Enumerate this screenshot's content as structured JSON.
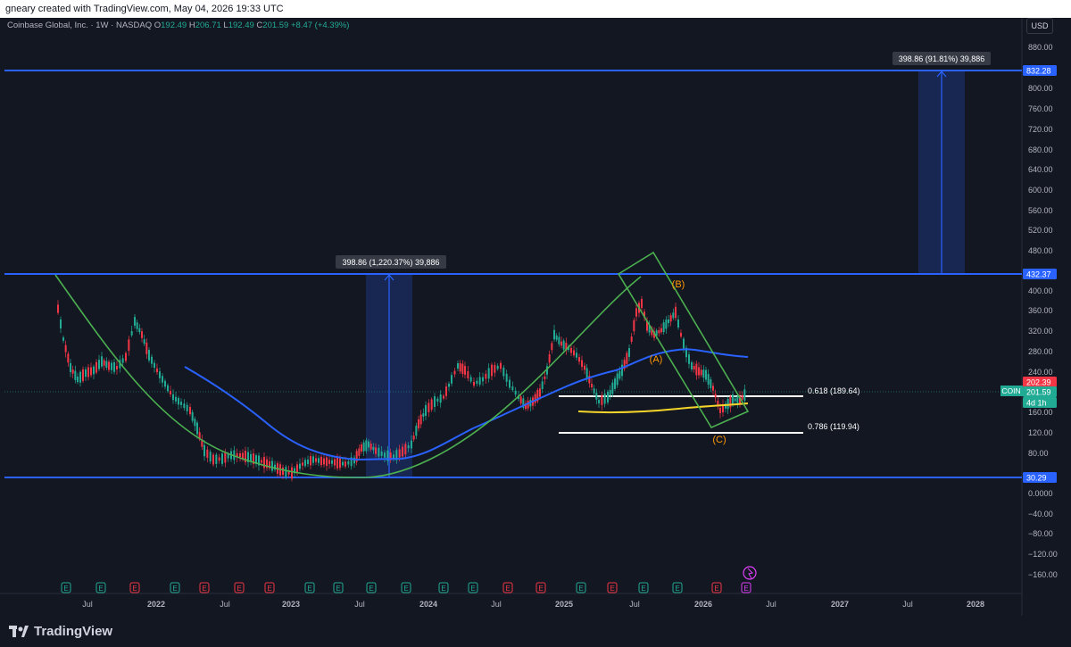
{
  "header": {
    "attribution": "gneary created with TradingView.com, May 04, 2026 19:33 UTC"
  },
  "symbol": {
    "name": "Coinbase Global, Inc. · 1W · NASDAQ",
    "o_label": "O",
    "o": "192.49",
    "h_label": "H",
    "h": "206.71",
    "l_label": "L",
    "l": "192.49",
    "c_label": "C",
    "c": "201.59",
    "change": "+8.47 (+4.39%)"
  },
  "currency_button": "USD",
  "price_axis": {
    "ticks": [
      "880.00",
      "800.00",
      "760.00",
      "720.00",
      "680.00",
      "640.00",
      "600.00",
      "560.00",
      "520.00",
      "480.00",
      "400.00",
      "360.00",
      "320.00",
      "280.00",
      "240.00",
      "160.00",
      "120.00",
      "80.00",
      "0.0000",
      "−40.00",
      "−80.00",
      "−120.00",
      "−160.00"
    ],
    "tags": [
      {
        "text": "832.28",
        "color": "#2962ff"
      },
      {
        "text": "432.37",
        "color": "#2962ff"
      },
      {
        "text": "202.39",
        "color": "#f23645"
      },
      {
        "text": "201.59",
        "color": "#22ab94"
      },
      {
        "text": "4d 1h",
        "color": "#22ab94"
      },
      {
        "text": "30.29",
        "color": "#2962ff"
      }
    ],
    "coin_label": "COIN"
  },
  "time_axis": {
    "labels": [
      "Jul",
      "2022",
      "Jul",
      "2023",
      "Jul",
      "2024",
      "Jul",
      "2025",
      "Jul",
      "2026",
      "Jul",
      "2027",
      "Jul",
      "2028"
    ]
  },
  "annotations": {
    "measure_upper": "398.86 (91.81%) 39,886",
    "measure_lower": "398.86 (1,220.37%) 39,886",
    "fib_618": "0.618 (189.64)",
    "fib_786": "0.786 (119.94)",
    "wave_a": "(A)",
    "wave_b": "(B)",
    "wave_c": "(C)"
  },
  "earnings_markers": [
    "E",
    "E",
    "E",
    "E",
    "E",
    "E",
    "E",
    "E",
    "E",
    "E",
    "E",
    "E",
    "E",
    "E",
    "E",
    "E",
    "E",
    "E",
    "E",
    "E",
    "E"
  ],
  "branding": {
    "logo_text": "TradingView"
  },
  "colors": {
    "up": "#22ab94",
    "down": "#f23645",
    "level_line": "#2962ff",
    "ma_line": "#2962ff",
    "yellow_line": "#f5d52a",
    "cup_line": "#4caf50",
    "background": "#131722"
  }
}
